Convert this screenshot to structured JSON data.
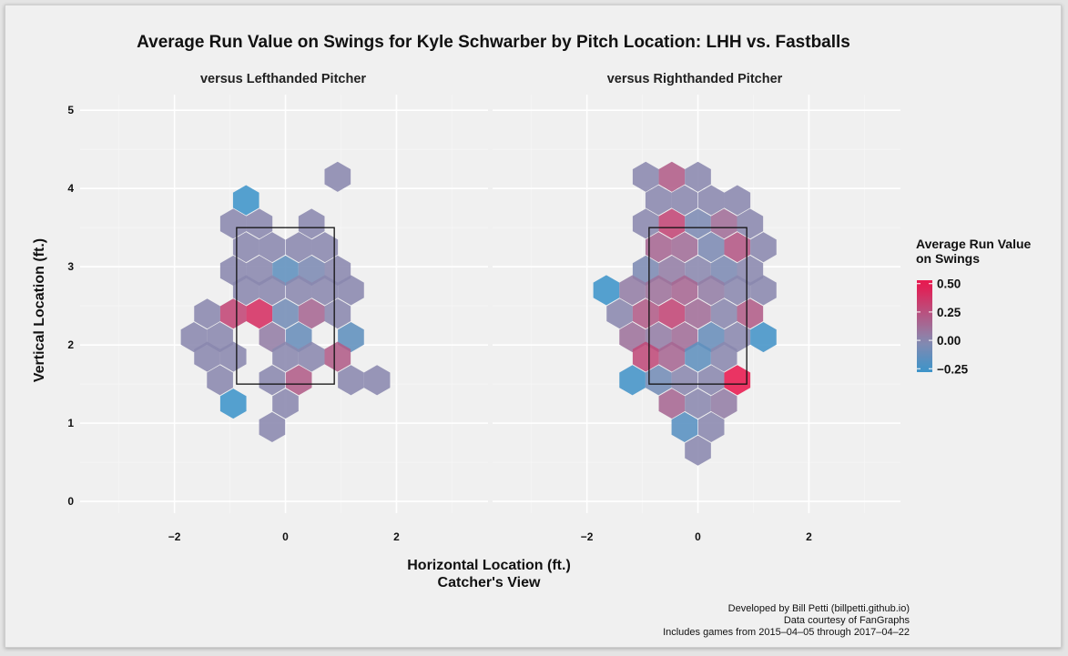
{
  "chart_data": {
    "type": "heatmap",
    "subtype": "hexbin",
    "title": "Average Run Value on Swings for Kyle Schwarber by Pitch Location: LHH vs. Fastballs",
    "xlabel": "Horizontal Location (ft.)",
    "xlabel_line2": "Catcher's View",
    "ylabel": "Vertical Location (ft.)",
    "xlim": [
      -3.7,
      3.65
    ],
    "ylim": [
      -0.15,
      5.2
    ],
    "x_ticks": [
      -2,
      0,
      2
    ],
    "x_tick_labels": [
      "−2",
      "0",
      "2"
    ],
    "y_ticks": [
      0,
      1,
      2,
      3,
      4,
      5
    ],
    "y_tick_labels": [
      "0",
      "1",
      "2",
      "3",
      "4",
      "5"
    ],
    "grid": true,
    "strike_zone": {
      "x": [
        -0.88,
        0.88
      ],
      "y": [
        1.5,
        3.5
      ]
    },
    "hex_width": 0.47,
    "legend": {
      "title_line1": "Average Run Value",
      "title_line2": "on Swings",
      "position": "right",
      "range": [
        -0.28,
        0.53
      ],
      "ticks": [
        0.5,
        0.25,
        0.0,
        -0.25
      ],
      "tick_labels": [
        "0.50",
        "0.25",
        "0.00",
        "−0.25"
      ],
      "colors": {
        "low": "#3d94c9",
        "mid": "#8a88ae",
        "high": "#e8194f"
      }
    },
    "caption": [
      "Developed by Bill Petti (billpetti.github.io)",
      "Data courtesy of FanGraphs",
      "Includes games from 2015–04–05 through 2017–04–22"
    ],
    "facets": [
      {
        "label": "versus Lefthanded Pitcher",
        "hexes": [
          {
            "x": 0.94,
            "y": 4.15,
            "v": 0.0
          },
          {
            "x": -0.71,
            "y": 3.85,
            "v": -0.27
          },
          {
            "x": -0.94,
            "y": 3.55,
            "v": 0.0
          },
          {
            "x": -0.47,
            "y": 3.55,
            "v": 0.0
          },
          {
            "x": 0.47,
            "y": 3.55,
            "v": 0.0
          },
          {
            "x": -0.71,
            "y": 3.25,
            "v": 0.0
          },
          {
            "x": -0.24,
            "y": 3.25,
            "v": 0.0
          },
          {
            "x": 0.24,
            "y": 3.25,
            "v": 0.0
          },
          {
            "x": 0.71,
            "y": 3.25,
            "v": 0.0
          },
          {
            "x": -0.94,
            "y": 2.95,
            "v": 0.0
          },
          {
            "x": -0.47,
            "y": 2.95,
            "v": 0.0
          },
          {
            "x": 0.0,
            "y": 2.95,
            "v": -0.15
          },
          {
            "x": 0.47,
            "y": 2.95,
            "v": -0.05
          },
          {
            "x": 0.94,
            "y": 2.95,
            "v": 0.0
          },
          {
            "x": -0.71,
            "y": 2.7,
            "v": 0.0
          },
          {
            "x": -0.24,
            "y": 2.7,
            "v": 0.0
          },
          {
            "x": 0.24,
            "y": 2.7,
            "v": 0.0
          },
          {
            "x": 0.71,
            "y": 2.7,
            "v": 0.0
          },
          {
            "x": 1.18,
            "y": 2.7,
            "v": 0.0
          },
          {
            "x": -1.41,
            "y": 2.4,
            "v": 0.0
          },
          {
            "x": -0.94,
            "y": 2.4,
            "v": 0.3
          },
          {
            "x": -0.47,
            "y": 2.4,
            "v": 0.4
          },
          {
            "x": 0.0,
            "y": 2.4,
            "v": -0.08
          },
          {
            "x": 0.47,
            "y": 2.4,
            "v": 0.15
          },
          {
            "x": 0.94,
            "y": 2.4,
            "v": 0.0
          },
          {
            "x": -1.65,
            "y": 2.1,
            "v": 0.0
          },
          {
            "x": -1.18,
            "y": 2.1,
            "v": 0.0
          },
          {
            "x": -0.24,
            "y": 2.1,
            "v": 0.05
          },
          {
            "x": 0.24,
            "y": 2.1,
            "v": -0.12
          },
          {
            "x": 1.18,
            "y": 2.1,
            "v": -0.15
          },
          {
            "x": -1.41,
            "y": 1.85,
            "v": 0.0
          },
          {
            "x": -0.94,
            "y": 1.85,
            "v": 0.0
          },
          {
            "x": 0.0,
            "y": 1.85,
            "v": 0.0
          },
          {
            "x": 0.47,
            "y": 1.85,
            "v": 0.0
          },
          {
            "x": 0.94,
            "y": 1.85,
            "v": 0.2
          },
          {
            "x": -1.18,
            "y": 1.55,
            "v": 0.0
          },
          {
            "x": -0.24,
            "y": 1.55,
            "v": 0.0
          },
          {
            "x": 0.24,
            "y": 1.55,
            "v": 0.2
          },
          {
            "x": 1.18,
            "y": 1.55,
            "v": 0.0
          },
          {
            "x": 1.65,
            "y": 1.55,
            "v": 0.0
          },
          {
            "x": -0.94,
            "y": 1.25,
            "v": -0.27
          },
          {
            "x": 0.0,
            "y": 1.25,
            "v": 0.0
          },
          {
            "x": -0.24,
            "y": 0.95,
            "v": 0.0
          }
        ]
      },
      {
        "label": "versus Righthanded Pitcher",
        "hexes": [
          {
            "x": -0.94,
            "y": 4.15,
            "v": 0.0
          },
          {
            "x": -0.47,
            "y": 4.15,
            "v": 0.2
          },
          {
            "x": 0.0,
            "y": 4.15,
            "v": 0.0
          },
          {
            "x": -0.71,
            "y": 3.85,
            "v": 0.0
          },
          {
            "x": -0.24,
            "y": 3.85,
            "v": 0.0
          },
          {
            "x": 0.24,
            "y": 3.85,
            "v": 0.0
          },
          {
            "x": 0.71,
            "y": 3.85,
            "v": 0.0
          },
          {
            "x": -0.94,
            "y": 3.55,
            "v": 0.0
          },
          {
            "x": -0.47,
            "y": 3.55,
            "v": 0.3
          },
          {
            "x": 0.0,
            "y": 3.55,
            "v": -0.05
          },
          {
            "x": 0.47,
            "y": 3.55,
            "v": 0.12
          },
          {
            "x": 0.94,
            "y": 3.55,
            "v": 0.0
          },
          {
            "x": -0.71,
            "y": 3.25,
            "v": 0.15
          },
          {
            "x": -0.24,
            "y": 3.25,
            "v": 0.12
          },
          {
            "x": 0.24,
            "y": 3.25,
            "v": -0.05
          },
          {
            "x": 0.71,
            "y": 3.25,
            "v": 0.22
          },
          {
            "x": 1.18,
            "y": 3.25,
            "v": 0.0
          },
          {
            "x": -0.94,
            "y": 2.95,
            "v": -0.05
          },
          {
            "x": -0.47,
            "y": 2.95,
            "v": 0.05
          },
          {
            "x": 0.0,
            "y": 2.95,
            "v": 0.0
          },
          {
            "x": 0.47,
            "y": 2.95,
            "v": -0.05
          },
          {
            "x": 0.94,
            "y": 2.95,
            "v": 0.0
          },
          {
            "x": -1.65,
            "y": 2.7,
            "v": -0.27
          },
          {
            "x": -1.18,
            "y": 2.7,
            "v": 0.05
          },
          {
            "x": -0.71,
            "y": 2.7,
            "v": 0.1
          },
          {
            "x": -0.24,
            "y": 2.7,
            "v": 0.15
          },
          {
            "x": 0.24,
            "y": 2.7,
            "v": 0.05
          },
          {
            "x": 0.71,
            "y": 2.7,
            "v": 0.0
          },
          {
            "x": 1.18,
            "y": 2.7,
            "v": 0.0
          },
          {
            "x": -1.41,
            "y": 2.4,
            "v": 0.0
          },
          {
            "x": -0.94,
            "y": 2.4,
            "v": 0.2
          },
          {
            "x": -0.47,
            "y": 2.4,
            "v": 0.3
          },
          {
            "x": 0.0,
            "y": 2.4,
            "v": 0.12
          },
          {
            "x": 0.47,
            "y": 2.4,
            "v": 0.0
          },
          {
            "x": 0.94,
            "y": 2.4,
            "v": 0.2
          },
          {
            "x": -1.18,
            "y": 2.1,
            "v": 0.1
          },
          {
            "x": -0.71,
            "y": 2.1,
            "v": 0.05
          },
          {
            "x": -0.24,
            "y": 2.1,
            "v": 0.12
          },
          {
            "x": 0.24,
            "y": 2.1,
            "v": -0.12
          },
          {
            "x": 0.71,
            "y": 2.1,
            "v": 0.0
          },
          {
            "x": 1.18,
            "y": 2.1,
            "v": -0.25
          },
          {
            "x": -0.94,
            "y": 1.85,
            "v": 0.28
          },
          {
            "x": -0.47,
            "y": 1.85,
            "v": 0.15
          },
          {
            "x": 0.0,
            "y": 1.85,
            "v": -0.15
          },
          {
            "x": 0.47,
            "y": 1.85,
            "v": 0.0
          },
          {
            "x": -1.18,
            "y": 1.55,
            "v": -0.25
          },
          {
            "x": -0.71,
            "y": 1.55,
            "v": -0.08
          },
          {
            "x": -0.24,
            "y": 1.55,
            "v": 0.0
          },
          {
            "x": 0.24,
            "y": 1.55,
            "v": 0.0
          },
          {
            "x": 0.71,
            "y": 1.55,
            "v": 0.5
          },
          {
            "x": -0.47,
            "y": 1.25,
            "v": 0.15
          },
          {
            "x": 0.0,
            "y": 1.25,
            "v": 0.0
          },
          {
            "x": 0.47,
            "y": 1.25,
            "v": 0.05
          },
          {
            "x": -0.24,
            "y": 0.95,
            "v": -0.18
          },
          {
            "x": 0.24,
            "y": 0.95,
            "v": 0.0
          },
          {
            "x": 0.0,
            "y": 0.65,
            "v": 0.0
          }
        ]
      }
    ]
  }
}
